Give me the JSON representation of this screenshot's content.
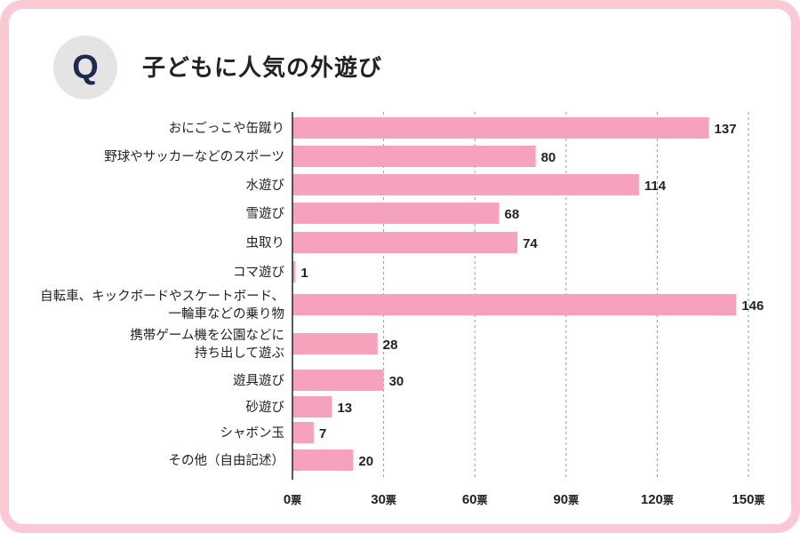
{
  "header": {
    "badge": "Q",
    "title": "子どもに人気の外遊び"
  },
  "chart_data": {
    "type": "bar",
    "orientation": "horizontal",
    "title": "子どもに人気の外遊び",
    "categories": [
      [
        "おにごっこや缶蹴り"
      ],
      [
        "野球やサッカーなどのスポーツ"
      ],
      [
        "水遊び"
      ],
      [
        "雪遊び"
      ],
      [
        "虫取り"
      ],
      [
        "コマ遊び"
      ],
      [
        "自転車、キックボードやスケートボード、",
        "一輪車などの乗り物"
      ],
      [
        "携帯ゲーム機を公園などに",
        "持ち出して遊ぶ"
      ],
      [
        "遊具遊び"
      ],
      [
        "砂遊び"
      ],
      [
        "シャボン玉"
      ],
      [
        "その他（自由記述）"
      ]
    ],
    "values": [
      137,
      80,
      114,
      68,
      74,
      1,
      146,
      28,
      30,
      13,
      7,
      20
    ],
    "xlim": [
      0,
      150
    ],
    "xticks": [
      0,
      30,
      60,
      90,
      120,
      150
    ],
    "tick_unit": "票",
    "xlabel": "",
    "ylabel": "",
    "grid": true,
    "bar_color": "#f7a2bd"
  }
}
